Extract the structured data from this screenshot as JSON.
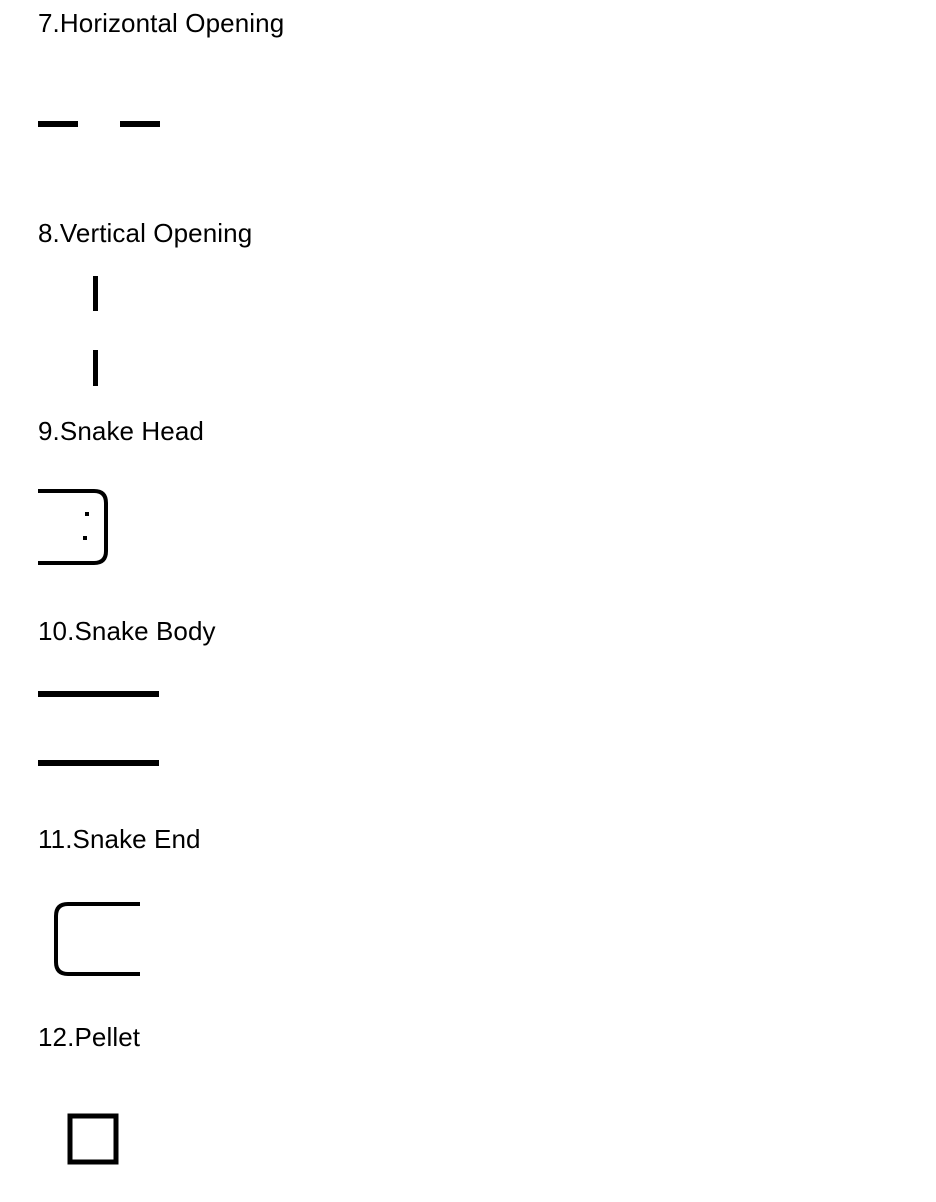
{
  "items": [
    {
      "label": "7.Horizontal Opening",
      "symbol": "horizontal-opening"
    },
    {
      "label": "8.Vertical Opening",
      "symbol": "vertical-opening"
    },
    {
      "label": "9.Snake Head",
      "symbol": "snake-head"
    },
    {
      "label": "10.Snake Body",
      "symbol": "snake-body"
    },
    {
      "label": "11.Snake End",
      "symbol": "snake-end"
    },
    {
      "label": "12.Pellet",
      "symbol": "pellet"
    }
  ]
}
